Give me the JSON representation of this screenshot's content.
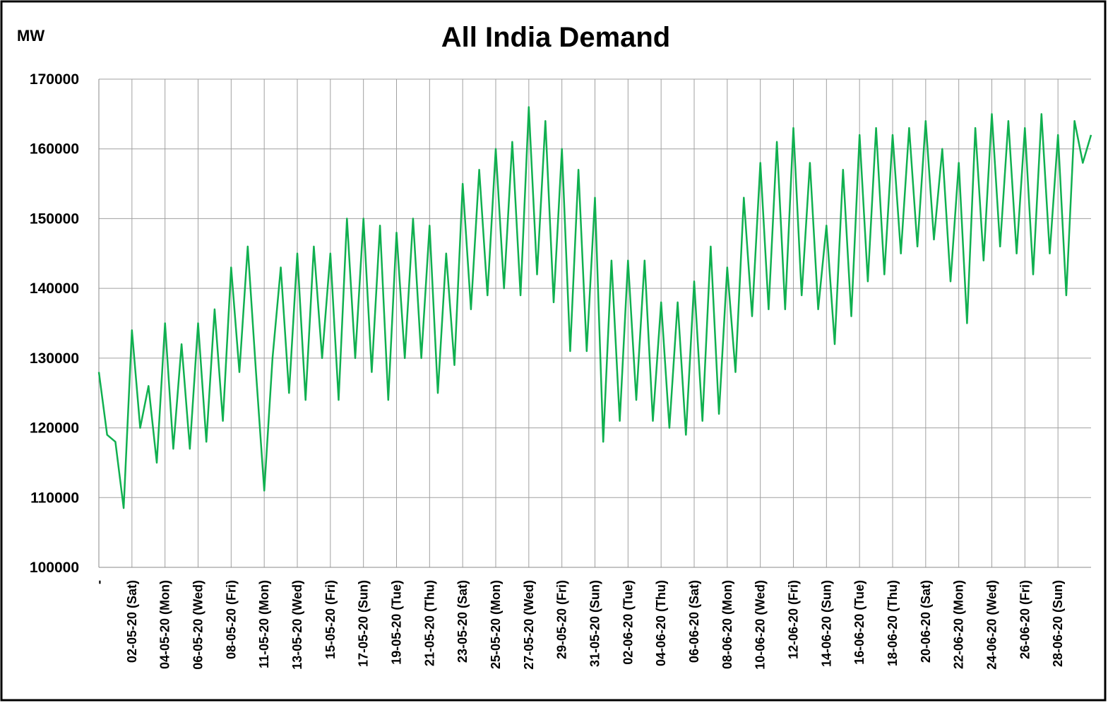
{
  "chart_data": {
    "type": "line",
    "title": "All India Demand",
    "y_label": "MW",
    "categories": [
      "-",
      null,
      null,
      null,
      "02-05-20 (Sat)",
      null,
      null,
      null,
      "04-05-20 (Mon)",
      null,
      null,
      null,
      "06-05-20 (Wed)",
      null,
      null,
      null,
      "08-05-20 (Fri)",
      null,
      null,
      null,
      "11-05-20 (Mon)",
      null,
      null,
      null,
      "13-05-20 (Wed)",
      null,
      null,
      null,
      "15-05-20 (Fri)",
      null,
      null,
      null,
      "17-05-20 (Sun)",
      null,
      null,
      null,
      "19-05-20 (Tue)",
      null,
      null,
      null,
      "21-05-20 (Thu)",
      null,
      null,
      null,
      "23-05-20 (Sat)",
      null,
      null,
      null,
      "25-05-20 (Mon)",
      null,
      null,
      null,
      "27-05-20 (Wed)",
      null,
      null,
      null,
      "29-05-20 (Fri)",
      null,
      null,
      null,
      "31-05-20 (Sun)",
      null,
      null,
      null,
      "02-06-20 (Tue)",
      null,
      null,
      null,
      "04-06-20 (Thu)",
      null,
      null,
      null,
      "06-06-20 (Sat)",
      null,
      null,
      null,
      "08-06-20 (Mon)",
      null,
      null,
      null,
      "10-06-20 (Wed)",
      null,
      null,
      null,
      "12-06-20 (Fri)",
      null,
      null,
      null,
      "14-06-20 (Sun)",
      null,
      null,
      null,
      "16-06-20 (Tue)",
      null,
      null,
      null,
      "18-06-20 (Thu)",
      null,
      null,
      null,
      "20-06-20 (Sat)",
      null,
      null,
      null,
      "22-06-20 (Mon)",
      null,
      null,
      null,
      "24-06-20 (Wed)",
      null,
      null,
      null,
      "26-06-20 (Fri)",
      null,
      null,
      null,
      "28-06-20 (Sun)",
      null,
      null,
      null,
      null
    ],
    "series": [
      {
        "color": "#10b050",
        "values": [
          128000,
          119000,
          118000,
          108500,
          134000,
          120000,
          126000,
          115000,
          135000,
          117000,
          132000,
          117000,
          135000,
          118000,
          137000,
          121000,
          143000,
          128000,
          146000,
          128000,
          111000,
          130000,
          143000,
          125000,
          145000,
          124000,
          146000,
          130000,
          145000,
          124000,
          150000,
          130000,
          150000,
          128000,
          149000,
          124000,
          148000,
          130000,
          150000,
          130000,
          149000,
          125000,
          145000,
          129000,
          155000,
          137000,
          157000,
          139000,
          160000,
          140000,
          161000,
          139000,
          166000,
          142000,
          164000,
          138000,
          160000,
          131000,
          157000,
          131000,
          153000,
          118000,
          144000,
          121000,
          144000,
          124000,
          144000,
          121000,
          138000,
          120000,
          138000,
          119000,
          141000,
          121000,
          146000,
          122000,
          143000,
          128000,
          153000,
          136000,
          158000,
          137000,
          161000,
          137000,
          163000,
          139000,
          158000,
          137000,
          149000,
          132000,
          157000,
          136000,
          162000,
          141000,
          163000,
          142000,
          162000,
          145000,
          163000,
          146000,
          164000,
          147000,
          160000,
          141000,
          158000,
          135000,
          163000,
          144000,
          165000,
          146000,
          164000,
          145000,
          163000,
          142000,
          165000,
          145000,
          162000,
          139000,
          164000,
          158000,
          162000
        ]
      }
    ],
    "ylim": [
      100000,
      170000
    ],
    "yticks": [
      100000,
      110000,
      120000,
      130000,
      140000,
      150000,
      160000,
      170000
    ],
    "grid": true
  }
}
